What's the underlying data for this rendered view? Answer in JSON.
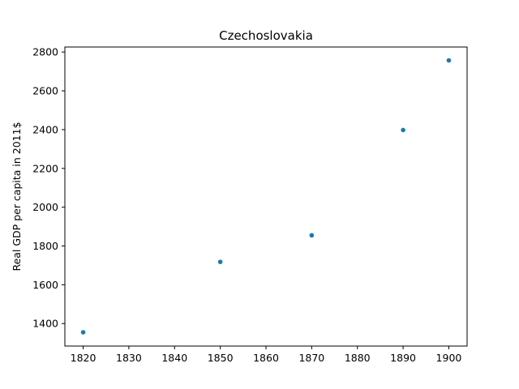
{
  "chart_data": {
    "type": "scatter",
    "title": "Czechoslovakia",
    "xlabel": "",
    "ylabel": "Real GDP per capita in 2011$",
    "x": [
      1820,
      1850,
      1870,
      1890,
      1900
    ],
    "y": [
      1355,
      1718,
      1855,
      2398,
      2757
    ],
    "xlim": [
      1816,
      1904
    ],
    "ylim": [
      1284,
      2826
    ],
    "xticks": [
      1820,
      1830,
      1840,
      1850,
      1860,
      1870,
      1880,
      1890,
      1900
    ],
    "yticks": [
      1400,
      1600,
      1800,
      2000,
      2200,
      2400,
      2600,
      2800
    ],
    "grid": false,
    "legend": "none",
    "marker_color": "#1f77b4"
  }
}
